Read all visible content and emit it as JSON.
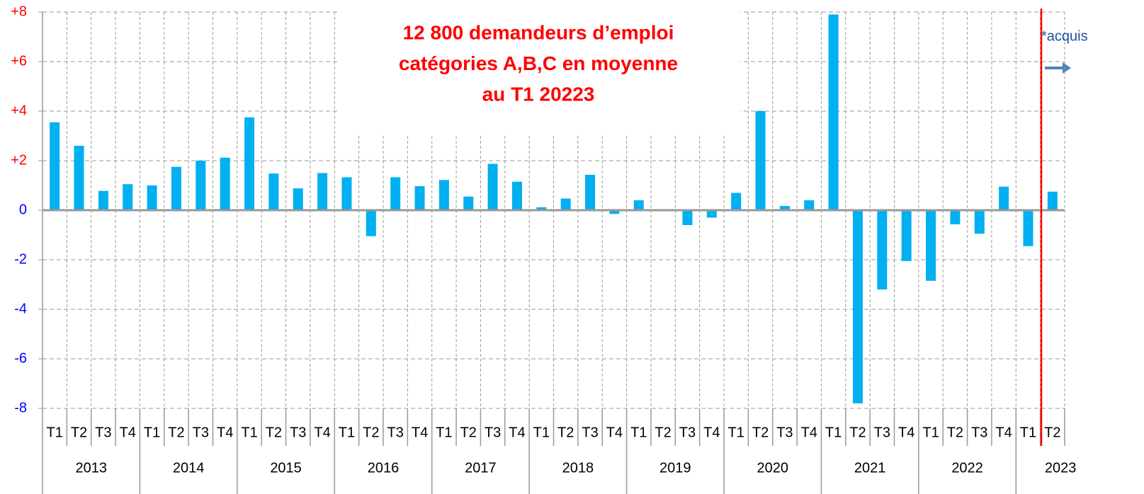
{
  "chart_data": {
    "type": "bar",
    "title": [
      "12 800 demandeurs d’emploi",
      "catégories A,B,C en moyenne",
      "au T1 20223"
    ],
    "annotation": "*acquis",
    "categories": [
      "T1",
      "T2",
      "T3",
      "T4",
      "T1",
      "T2",
      "T3",
      "T4",
      "T1",
      "T2",
      "T3",
      "T4",
      "T1",
      "T2",
      "T3",
      "T4",
      "T1",
      "T2",
      "T3",
      "T4",
      "T1",
      "T2",
      "T3",
      "T4",
      "T1",
      "T2",
      "T3",
      "T4",
      "T1",
      "T2",
      "T3",
      "T4",
      "T1",
      "T2",
      "T3",
      "T4",
      "T1",
      "T2",
      "T3",
      "T4",
      "T1",
      "T2"
    ],
    "years": [
      "2013",
      "2014",
      "2015",
      "2016",
      "2017",
      "2018",
      "2019",
      "2020",
      "2021",
      "2022",
      "2023"
    ],
    "values": [
      3.55,
      2.6,
      0.78,
      1.05,
      1.0,
      1.75,
      2.0,
      2.12,
      3.75,
      1.48,
      0.88,
      1.5,
      1.33,
      -1.05,
      1.33,
      0.97,
      1.22,
      0.55,
      1.87,
      1.15,
      0.12,
      0.47,
      1.43,
      -0.15,
      0.4,
      0,
      -0.6,
      -0.3,
      0.7,
      4.0,
      0.17,
      0.4,
      7.9,
      -7.8,
      -3.2,
      -2.05,
      -2.85,
      -0.57,
      -0.95,
      0.95,
      -1.45,
      0.75
    ],
    "color": "#00b0f0",
    "ylim": [
      -8,
      8
    ],
    "yticks": [
      {
        "value": 8,
        "label": "+8"
      },
      {
        "value": 6,
        "label": "+6"
      },
      {
        "value": 4,
        "label": "+4"
      },
      {
        "value": 2,
        "label": "+2"
      },
      0,
      -2,
      -4,
      -6,
      -8
    ],
    "positive_tick_color": "#ff0000",
    "tick_color": "#0000ff",
    "grid": true
  }
}
